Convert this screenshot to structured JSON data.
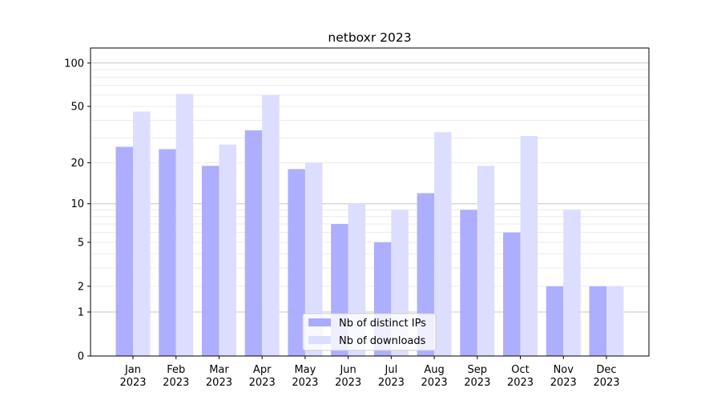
{
  "chart_data": {
    "type": "bar",
    "title": "netboxr 2023",
    "xlabel": "",
    "ylabel": "",
    "yscale": "log(y+1)",
    "ylim": [
      0,
      120
    ],
    "yticks": [
      0,
      1,
      2,
      5,
      10,
      20,
      50,
      100
    ],
    "ytick_labels": [
      "0",
      "1",
      "2",
      "5",
      "10",
      "20",
      "50",
      "100"
    ],
    "categories": [
      "Jan\n2023",
      "Feb\n2023",
      "Mar\n2023",
      "Apr\n2023",
      "May\n2023",
      "Jun\n2023",
      "Jul\n2023",
      "Aug\n2023",
      "Sep\n2023",
      "Oct\n2023",
      "Nov\n2023",
      "Dec\n2023"
    ],
    "series": [
      {
        "name": "Nb of distinct IPs",
        "color": "#aaaaff",
        "values": [
          26,
          25,
          19,
          34,
          18,
          7,
          5,
          12,
          9,
          6,
          2,
          2
        ]
      },
      {
        "name": "Nb of downloads",
        "color": "#ddddff",
        "values": [
          46,
          61,
          27,
          60,
          20,
          10,
          9,
          33,
          19,
          31,
          9,
          2
        ]
      }
    ],
    "grid": true,
    "legend": "lower-center"
  }
}
